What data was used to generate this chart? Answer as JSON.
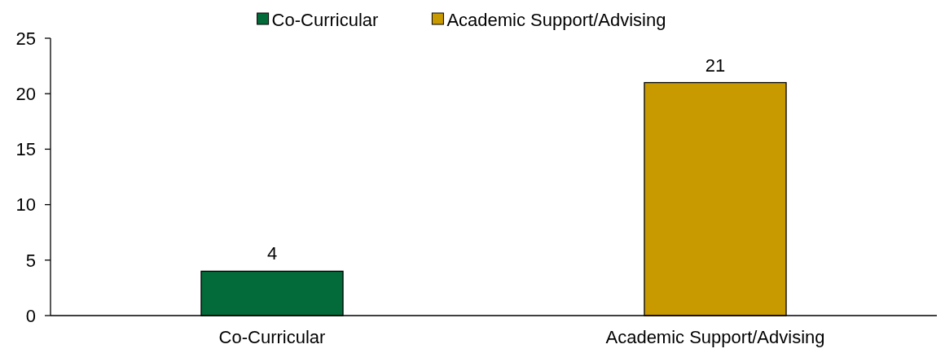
{
  "chart_data": {
    "type": "bar",
    "categories": [
      "Co-Curricular",
      "Academic Support/Advising"
    ],
    "stacked": true,
    "series": [
      {
        "name": "Co-Curricular",
        "color": "#036b3a",
        "values": [
          4,
          null
        ]
      },
      {
        "name": "Academic Support/Advising",
        "color": "#c99a00",
        "values": [
          null,
          21
        ]
      }
    ],
    "ylim": [
      0,
      25
    ],
    "yticks": [
      0,
      5,
      10,
      15,
      20,
      25
    ],
    "legend": "top",
    "data_labels": true
  }
}
